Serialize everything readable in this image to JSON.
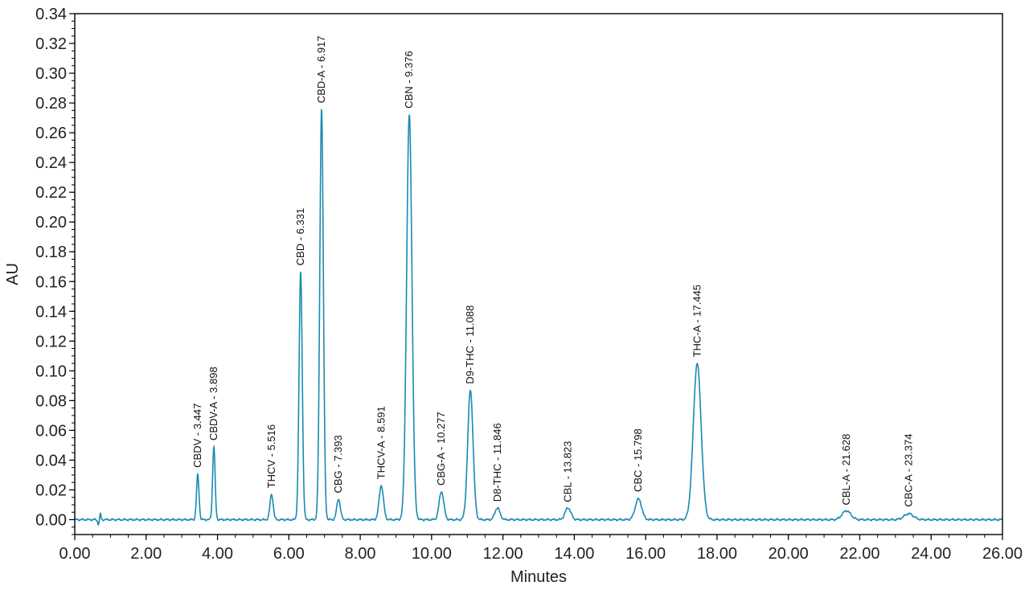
{
  "chart_data": {
    "type": "line",
    "xlabel": "Minutes",
    "ylabel": "AU",
    "xlim": [
      0,
      26
    ],
    "ylim": [
      -0.01,
      0.34
    ],
    "xticks": [
      0,
      2,
      4,
      6,
      8,
      10,
      12,
      14,
      16,
      18,
      20,
      22,
      24,
      26
    ],
    "xtick_labels": [
      "0.00",
      "2.00",
      "4.00",
      "6.00",
      "8.00",
      "10.00",
      "12.00",
      "14.00",
      "16.00",
      "18.00",
      "20.00",
      "22.00",
      "24.00",
      "26.00"
    ],
    "yticks": [
      0,
      0.02,
      0.04,
      0.06,
      0.08,
      0.1,
      0.12,
      0.14,
      0.16,
      0.18,
      0.2,
      0.22,
      0.24,
      0.26,
      0.28,
      0.3,
      0.32,
      0.34
    ],
    "ytick_labels": [
      "0.00",
      "0.02",
      "0.04",
      "0.06",
      "0.08",
      "0.10",
      "0.12",
      "0.14",
      "0.16",
      "0.18",
      "0.20",
      "0.22",
      "0.24",
      "0.26",
      "0.28",
      "0.30",
      "0.32",
      "0.34"
    ],
    "line_color": "#1a8ab0",
    "grid": false,
    "peaks": [
      {
        "label": "CBDV - 3.447",
        "rt": 3.447,
        "height": 0.03,
        "width": 0.035
      },
      {
        "label": "CBDV-A - 3.898",
        "rt": 3.898,
        "height": 0.049,
        "width": 0.035
      },
      {
        "label": "THCV - 5.516",
        "rt": 5.516,
        "height": 0.017,
        "width": 0.045
      },
      {
        "label": "CBD - 6.331",
        "rt": 6.331,
        "height": 0.166,
        "width": 0.045
      },
      {
        "label": "CBD-A - 6.917",
        "rt": 6.917,
        "height": 0.276,
        "width": 0.05
      },
      {
        "label": "CBG - 7.393",
        "rt": 7.393,
        "height": 0.014,
        "width": 0.05
      },
      {
        "label": "THCV-A - 8.591",
        "rt": 8.591,
        "height": 0.023,
        "width": 0.06
      },
      {
        "label": "CBN - 9.376",
        "rt": 9.376,
        "height": 0.272,
        "width": 0.075
      },
      {
        "label": "CBG-A - 10.277",
        "rt": 10.277,
        "height": 0.019,
        "width": 0.065
      },
      {
        "label": "D9-THC - 11.088",
        "rt": 11.088,
        "height": 0.087,
        "width": 0.075
      },
      {
        "label": "D8-THC - 11.846",
        "rt": 11.846,
        "height": 0.008,
        "width": 0.07
      },
      {
        "label": "CBL - 13.823",
        "rt": 13.823,
        "height": 0.008,
        "width": 0.08
      },
      {
        "label": "CBC - 15.798",
        "rt": 15.798,
        "height": 0.014,
        "width": 0.09
      },
      {
        "label": "THC-A - 17.445",
        "rt": 17.445,
        "height": 0.105,
        "width": 0.11
      },
      {
        "label": "CBL-A - 21.628",
        "rt": 21.628,
        "height": 0.006,
        "width": 0.12
      },
      {
        "label": "CBC-A - 23.374",
        "rt": 23.374,
        "height": 0.004,
        "width": 0.13
      }
    ]
  }
}
